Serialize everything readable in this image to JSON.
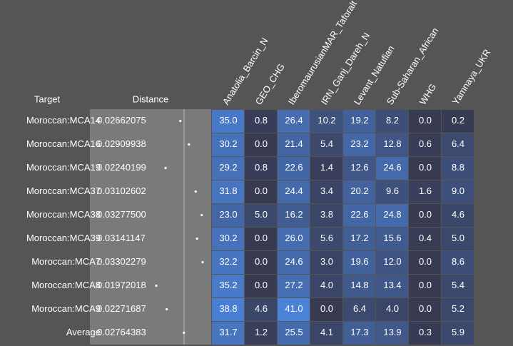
{
  "header": {
    "target": "Target",
    "distance": "Distance"
  },
  "columns": [
    "Anatolia_Barcin_N",
    "GEO_CHG",
    "IberomaurusianMAR_Taforalt",
    "IRN_Ganj_Dareh_N",
    "Levant_Natufian",
    "Sub-Saharan_African",
    "WHG",
    "Yamnaya_UKR"
  ],
  "rows": [
    {
      "target": "Moroccan:MCA14",
      "distance": "0.02662075",
      "values": [
        "35.0",
        "0.8",
        "26.4",
        "10.2",
        "19.2",
        "8.2",
        "0.0",
        "0.2"
      ]
    },
    {
      "target": "Moroccan:MCA16",
      "distance": "0.02909938",
      "values": [
        "30.2",
        "0.0",
        "21.4",
        "5.4",
        "23.2",
        "12.8",
        "0.6",
        "6.4"
      ]
    },
    {
      "target": "Moroccan:MCA19",
      "distance": "0.02240199",
      "values": [
        "29.2",
        "0.8",
        "22.6",
        "1.4",
        "12.6",
        "24.6",
        "0.0",
        "8.8"
      ]
    },
    {
      "target": "Moroccan:MCA37",
      "distance": "0.03102602",
      "values": [
        "31.8",
        "0.0",
        "24.4",
        "3.4",
        "20.2",
        "9.6",
        "1.6",
        "9.0"
      ]
    },
    {
      "target": "Moroccan:MCA38",
      "distance": "0.03277500",
      "values": [
        "23.0",
        "5.0",
        "16.2",
        "3.8",
        "22.6",
        "24.8",
        "0.0",
        "4.6"
      ]
    },
    {
      "target": "Moroccan:MCA39",
      "distance": "0.03141147",
      "values": [
        "30.2",
        "0.0",
        "26.0",
        "5.6",
        "17.2",
        "15.6",
        "0.4",
        "5.0"
      ]
    },
    {
      "target": "Moroccan:MCA7",
      "distance": "0.03302279",
      "values": [
        "32.2",
        "0.0",
        "24.6",
        "3.0",
        "19.6",
        "12.0",
        "0.0",
        "8.6"
      ]
    },
    {
      "target": "Moroccan:MCA8",
      "distance": "0.01972018",
      "values": [
        "35.2",
        "0.0",
        "27.2",
        "4.0",
        "14.8",
        "13.4",
        "0.0",
        "5.4"
      ]
    },
    {
      "target": "Moroccan:MCA9",
      "distance": "0.02271687",
      "values": [
        "38.8",
        "4.6",
        "41.0",
        "0.0",
        "6.4",
        "4.0",
        "0.0",
        "5.2"
      ]
    },
    {
      "target": "Average",
      "distance": "0.02764383",
      "values": [
        "31.7",
        "1.2",
        "25.5",
        "4.1",
        "17.3",
        "13.9",
        "0.3",
        "5.9"
      ]
    }
  ]
}
